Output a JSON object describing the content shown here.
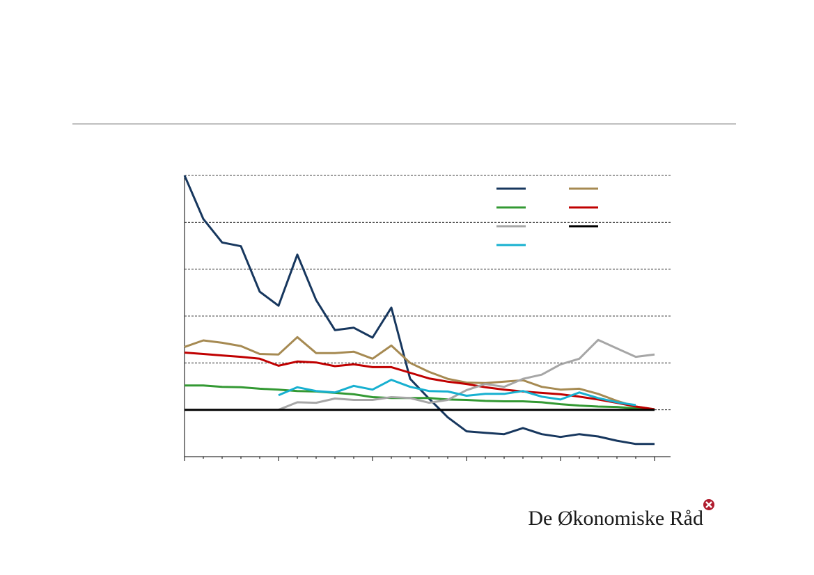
{
  "chart_data": {
    "type": "line",
    "x": [
      0,
      1,
      2,
      3,
      4,
      5,
      6,
      7,
      8,
      9,
      10,
      11,
      12,
      13,
      14,
      15,
      16,
      17,
      18,
      19,
      20,
      21,
      22,
      23,
      24,
      25
    ],
    "xlim": [
      0,
      26
    ],
    "xticks": [
      0,
      1,
      2,
      3,
      4,
      5,
      6,
      7,
      8,
      9,
      10,
      11,
      12,
      13,
      14,
      15,
      16,
      17,
      18,
      19,
      20,
      21,
      22,
      23,
      24,
      25
    ],
    "ylim": [
      -1,
      5
    ],
    "yticks": [
      0,
      1,
      2,
      3,
      4,
      5
    ],
    "grid": true,
    "legend": "upper right",
    "series": [
      {
        "color": "#17375e",
        "values": [
          5.0,
          4.07,
          3.57,
          3.49,
          2.52,
          2.22,
          3.31,
          2.34,
          1.7,
          1.75,
          1.54,
          2.18,
          0.66,
          0.24,
          -0.16,
          -0.46,
          -0.49,
          -0.52,
          -0.39,
          -0.52,
          -0.58,
          -0.52,
          -0.57,
          -0.66,
          -0.73,
          -0.73
        ]
      },
      {
        "color": "#a68a52",
        "values": [
          1.34,
          1.48,
          1.43,
          1.36,
          1.19,
          1.18,
          1.55,
          1.21,
          1.21,
          1.24,
          1.09,
          1.37,
          1.0,
          0.81,
          0.66,
          0.58,
          0.57,
          0.6,
          0.63,
          0.49,
          0.43,
          0.45,
          0.34,
          0.19,
          0.07,
          0.01
        ]
      },
      {
        "color": "#339933",
        "values": [
          0.52,
          0.52,
          0.49,
          0.48,
          0.45,
          0.43,
          0.4,
          0.39,
          0.36,
          0.33,
          0.27,
          0.25,
          0.25,
          0.25,
          0.22,
          0.21,
          0.19,
          0.18,
          0.18,
          0.16,
          0.12,
          0.09,
          0.07,
          0.06,
          0.03,
          0.01
        ]
      },
      {
        "color": "#c00000",
        "values": [
          1.22,
          1.19,
          1.16,
          1.13,
          1.09,
          0.94,
          1.03,
          1.01,
          0.93,
          0.97,
          0.91,
          0.91,
          0.79,
          0.67,
          0.6,
          0.55,
          0.48,
          0.43,
          0.39,
          0.36,
          0.33,
          0.28,
          0.22,
          0.15,
          0.07,
          0.01
        ]
      },
      {
        "color": "#a6a6a6",
        "values": [
          null,
          null,
          null,
          null,
          null,
          0,
          0.16,
          0.15,
          0.24,
          0.21,
          0.21,
          0.27,
          0.25,
          0.15,
          0.21,
          0.42,
          0.55,
          0.49,
          0.66,
          0.75,
          0.97,
          1.09,
          1.49,
          1.31,
          1.13,
          1.18
        ]
      },
      {
        "color": "#000000",
        "values": [
          0,
          0,
          0,
          0,
          0,
          0,
          0,
          0,
          0,
          0,
          0,
          0,
          0,
          0,
          0,
          0,
          0,
          0,
          0,
          0,
          0,
          0,
          0,
          0,
          0,
          0
        ]
      },
      {
        "color": "#17b0d0",
        "values": [
          null,
          null,
          null,
          null,
          null,
          0.31,
          0.48,
          0.4,
          0.37,
          0.51,
          0.43,
          0.64,
          0.49,
          0.4,
          0.39,
          0.3,
          0.34,
          0.34,
          0.4,
          0.28,
          0.22,
          0.37,
          0.25,
          0.16,
          0.1,
          null
        ]
      }
    ]
  },
  "logo": "De Økonomiske Råd"
}
